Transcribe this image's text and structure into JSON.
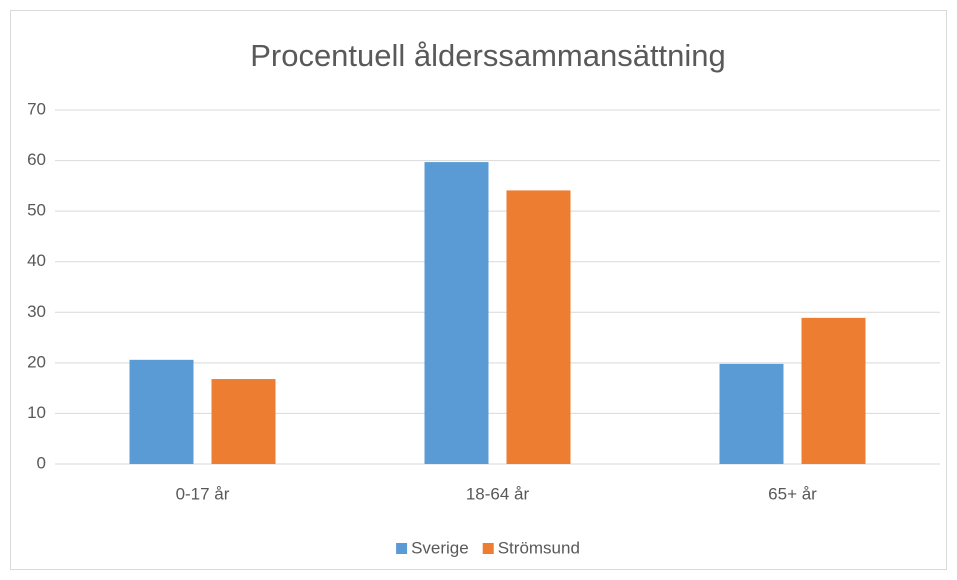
{
  "chart_data": {
    "type": "bar",
    "title": "Procentuell ålderssammansättning",
    "categories": [
      "0-17 år",
      "18-64 år",
      "65+ år"
    ],
    "series": [
      {
        "name": "Sverige",
        "color": "#5b9bd5",
        "values": [
          20.6,
          59.7,
          19.8
        ]
      },
      {
        "name": "Strömsund",
        "color": "#ed7d31",
        "values": [
          16.8,
          54.1,
          28.9
        ]
      }
    ],
    "ylim": [
      0,
      70
    ],
    "yticks": [
      0,
      10,
      20,
      30,
      40,
      50,
      60,
      70
    ],
    "grid": true,
    "legend": "bottom"
  }
}
